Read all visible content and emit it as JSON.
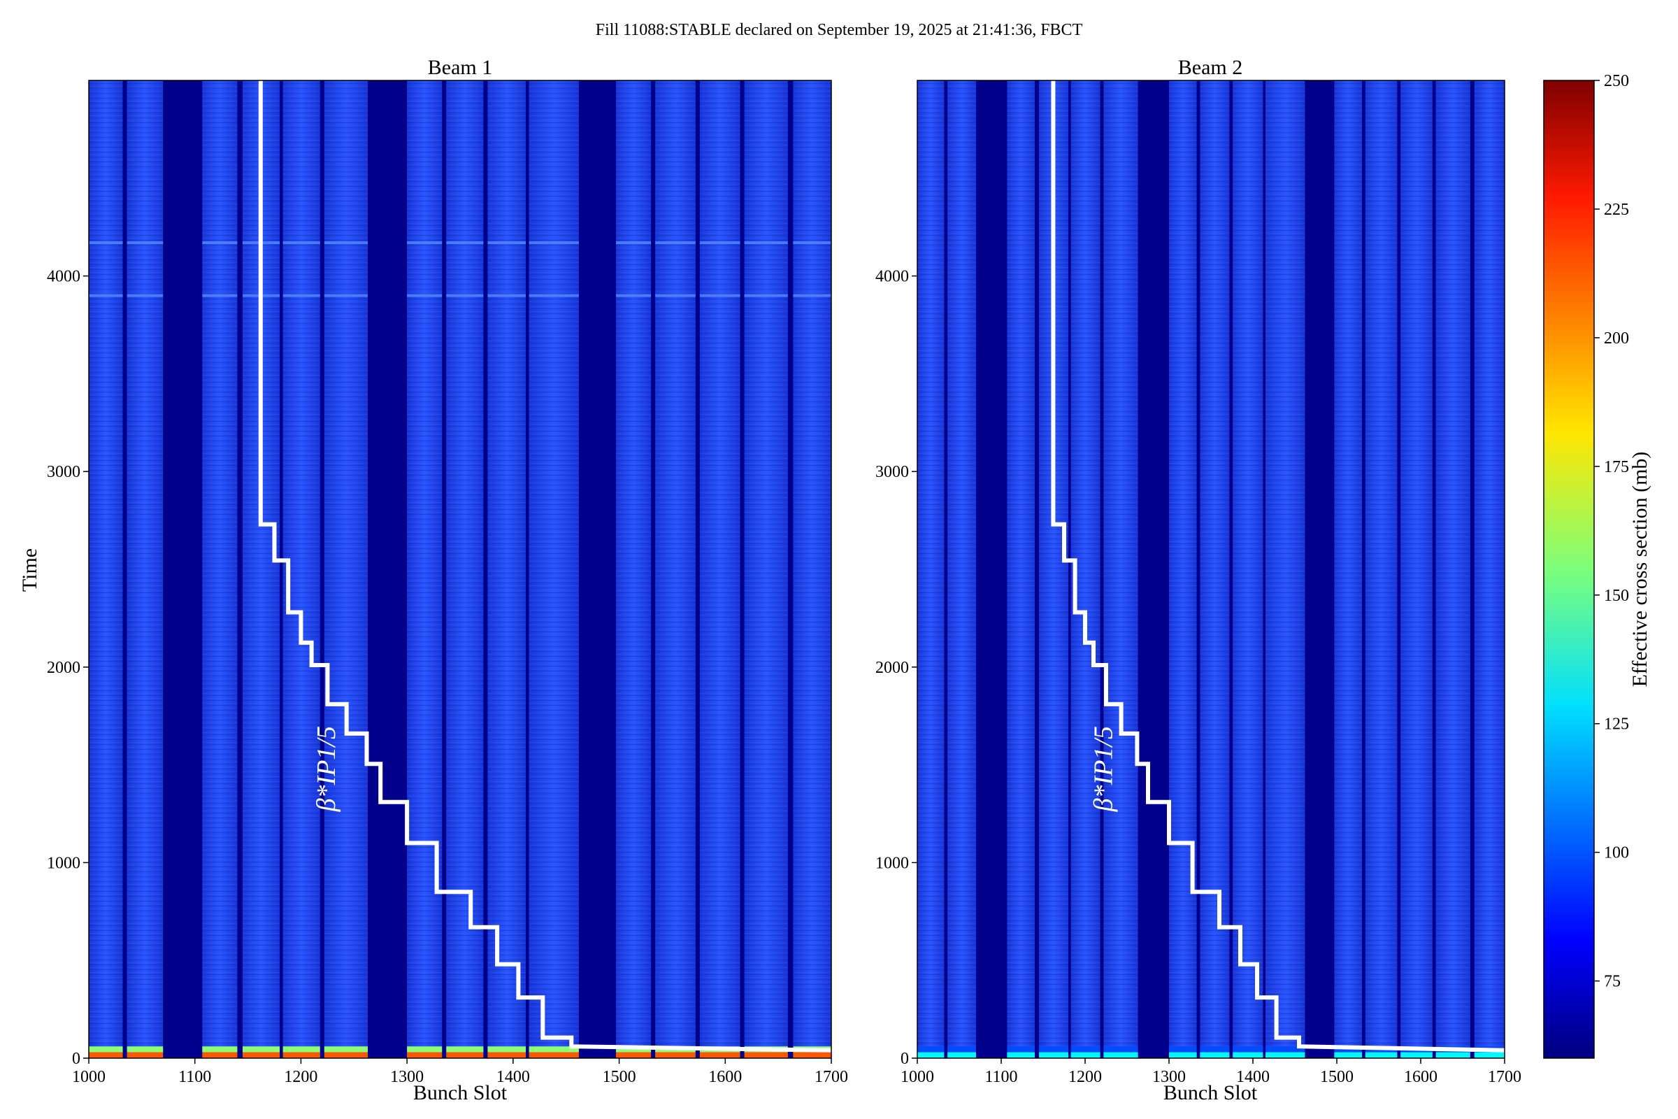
{
  "figure": {
    "suptitle": "Fill 11088:STABLE declared on September 19, 2025 at 21:41:36, FBCT"
  },
  "colorbar": {
    "label": "Effective cross section (mb)",
    "ticks": [
      75,
      100,
      125,
      150,
      175,
      200,
      225,
      250
    ],
    "range": [
      60,
      250
    ],
    "colormap": "jet"
  },
  "colors": {
    "background_cmap_low": "#00008b",
    "band_blue": "#1f3fe8",
    "overlay_line": "#ffffff"
  },
  "chart_data": [
    {
      "type": "heatmap",
      "title": "Beam 1",
      "xlabel": "Bunch Slot",
      "ylabel": "Time",
      "xlim": [
        1000,
        1700
      ],
      "ylim": [
        0,
        5000
      ],
      "xticks": [
        1000,
        1100,
        1200,
        1300,
        1400,
        1500,
        1600,
        1700
      ],
      "yticks": [
        0,
        1000,
        2000,
        3000,
        4000
      ],
      "filled_bunch_ranges": [
        [
          1000,
          1032
        ],
        [
          1036,
          1070
        ],
        [
          1107,
          1140
        ],
        [
          1145,
          1180
        ],
        [
          1183,
          1218
        ],
        [
          1222,
          1263
        ],
        [
          1300,
          1333
        ],
        [
          1337,
          1372
        ],
        [
          1376,
          1412
        ],
        [
          1415,
          1462
        ],
        [
          1497,
          1530
        ],
        [
          1534,
          1572
        ],
        [
          1576,
          1614
        ],
        [
          1618,
          1659
        ],
        [
          1664,
          1700
        ]
      ],
      "value_bulk_mb": 85,
      "value_start_mb": 210,
      "horizontal_lines_time": [
        3900,
        4170
      ],
      "overlay_label": "β*IP1/5",
      "beta_star_staircase": [
        {
          "x": 1162,
          "y": 5000
        },
        {
          "x": 1162,
          "y": 2730
        },
        {
          "x": 1175,
          "y": 2730
        },
        {
          "x": 1175,
          "y": 2545
        },
        {
          "x": 1188,
          "y": 2545
        },
        {
          "x": 1188,
          "y": 2280
        },
        {
          "x": 1200,
          "y": 2280
        },
        {
          "x": 1200,
          "y": 2125
        },
        {
          "x": 1210,
          "y": 2125
        },
        {
          "x": 1210,
          "y": 2010
        },
        {
          "x": 1225,
          "y": 2010
        },
        {
          "x": 1225,
          "y": 1810
        },
        {
          "x": 1243,
          "y": 1810
        },
        {
          "x": 1243,
          "y": 1660
        },
        {
          "x": 1262,
          "y": 1660
        },
        {
          "x": 1262,
          "y": 1505
        },
        {
          "x": 1275,
          "y": 1505
        },
        {
          "x": 1275,
          "y": 1310
        },
        {
          "x": 1300,
          "y": 1310
        },
        {
          "x": 1300,
          "y": 1100
        },
        {
          "x": 1328,
          "y": 1100
        },
        {
          "x": 1328,
          "y": 850
        },
        {
          "x": 1360,
          "y": 850
        },
        {
          "x": 1360,
          "y": 670
        },
        {
          "x": 1385,
          "y": 670
        },
        {
          "x": 1385,
          "y": 480
        },
        {
          "x": 1405,
          "y": 480
        },
        {
          "x": 1405,
          "y": 310
        },
        {
          "x": 1428,
          "y": 310
        },
        {
          "x": 1428,
          "y": 105
        },
        {
          "x": 1455,
          "y": 105
        },
        {
          "x": 1455,
          "y": 60
        },
        {
          "x": 1700,
          "y": 40
        }
      ]
    },
    {
      "type": "heatmap",
      "title": "Beam 2",
      "xlabel": "Bunch Slot",
      "ylabel": "",
      "xlim": [
        1000,
        1700
      ],
      "ylim": [
        0,
        5000
      ],
      "xticks": [
        1000,
        1100,
        1200,
        1300,
        1400,
        1500,
        1600,
        1700
      ],
      "yticks": [
        0,
        1000,
        2000,
        3000,
        4000
      ],
      "filled_bunch_ranges": [
        [
          1000,
          1032
        ],
        [
          1036,
          1070
        ],
        [
          1107,
          1140
        ],
        [
          1145,
          1180
        ],
        [
          1183,
          1218
        ],
        [
          1222,
          1263
        ],
        [
          1300,
          1333
        ],
        [
          1337,
          1372
        ],
        [
          1376,
          1412
        ],
        [
          1415,
          1462
        ],
        [
          1497,
          1530
        ],
        [
          1534,
          1572
        ],
        [
          1576,
          1614
        ],
        [
          1618,
          1659
        ],
        [
          1664,
          1700
        ]
      ],
      "value_bulk_mb": 85,
      "value_start_mb": 130,
      "horizontal_lines_time": [],
      "overlay_label": "β*IP1/5",
      "beta_star_staircase": [
        {
          "x": 1162,
          "y": 5000
        },
        {
          "x": 1162,
          "y": 2730
        },
        {
          "x": 1175,
          "y": 2730
        },
        {
          "x": 1175,
          "y": 2545
        },
        {
          "x": 1188,
          "y": 2545
        },
        {
          "x": 1188,
          "y": 2280
        },
        {
          "x": 1200,
          "y": 2280
        },
        {
          "x": 1200,
          "y": 2125
        },
        {
          "x": 1210,
          "y": 2125
        },
        {
          "x": 1210,
          "y": 2010
        },
        {
          "x": 1225,
          "y": 2010
        },
        {
          "x": 1225,
          "y": 1810
        },
        {
          "x": 1243,
          "y": 1810
        },
        {
          "x": 1243,
          "y": 1660
        },
        {
          "x": 1262,
          "y": 1660
        },
        {
          "x": 1262,
          "y": 1505
        },
        {
          "x": 1275,
          "y": 1505
        },
        {
          "x": 1275,
          "y": 1310
        },
        {
          "x": 1300,
          "y": 1310
        },
        {
          "x": 1300,
          "y": 1100
        },
        {
          "x": 1328,
          "y": 1100
        },
        {
          "x": 1328,
          "y": 850
        },
        {
          "x": 1360,
          "y": 850
        },
        {
          "x": 1360,
          "y": 670
        },
        {
          "x": 1385,
          "y": 670
        },
        {
          "x": 1385,
          "y": 480
        },
        {
          "x": 1405,
          "y": 480
        },
        {
          "x": 1405,
          "y": 310
        },
        {
          "x": 1428,
          "y": 310
        },
        {
          "x": 1428,
          "y": 105
        },
        {
          "x": 1455,
          "y": 105
        },
        {
          "x": 1455,
          "y": 60
        },
        {
          "x": 1700,
          "y": 40
        }
      ]
    }
  ]
}
